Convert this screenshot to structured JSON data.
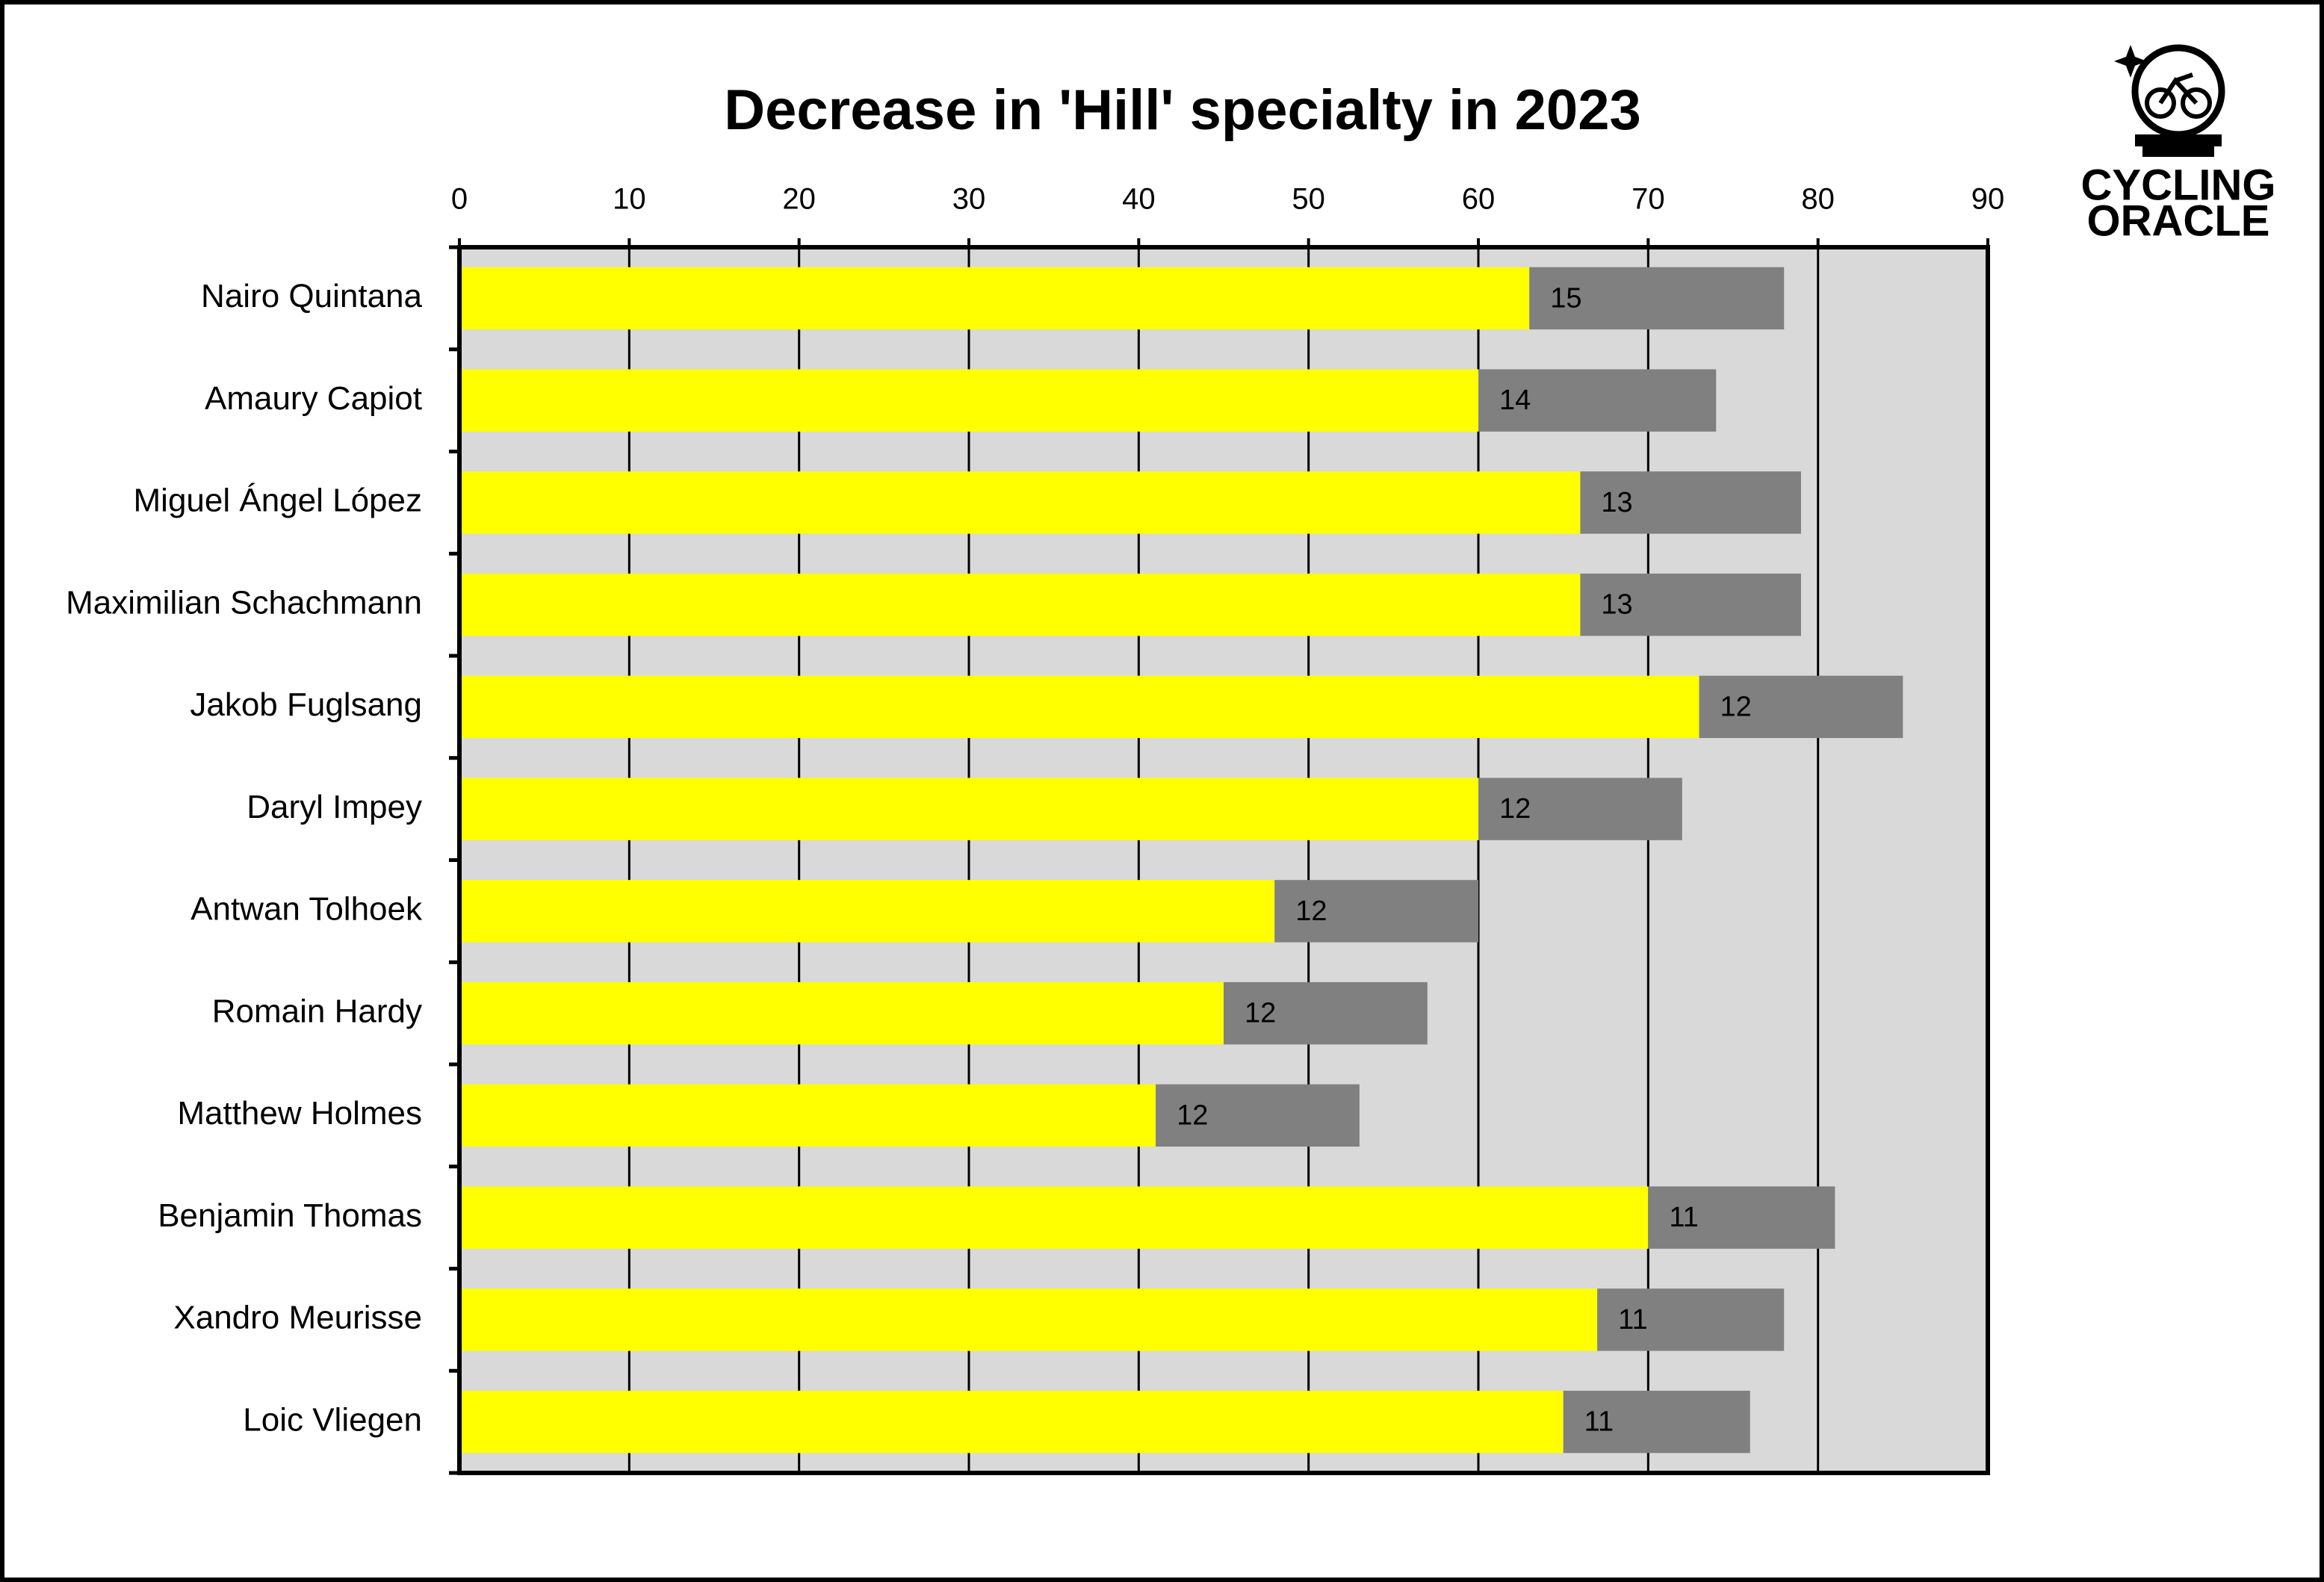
{
  "chart_data": {
    "type": "stacked_bar_horizontal",
    "title": "Decrease in 'Hill' specialty in 2023",
    "categories": [
      "Nairo Quintana",
      "Amaury Capiot",
      "Miguel Ángel López",
      "Maximilian Schachmann",
      "Jakob Fuglsang",
      "Daryl Impey",
      "Antwan Tolhoek",
      "Romain Hardy",
      "Matthew Holmes",
      "Benjamin Thomas",
      "Xandro Meurisse",
      "Loic Vliegen"
    ],
    "series": [
      {
        "color": "#ffff00",
        "values": [
          63,
          60,
          66,
          66,
          73,
          60,
          48,
          45,
          41,
          70,
          67,
          65
        ]
      },
      {
        "color": "#808080",
        "data_labels": true,
        "values": [
          15,
          14,
          13,
          13,
          12,
          12,
          12,
          12,
          12,
          11,
          11,
          11
        ]
      }
    ],
    "xlim": [
      0,
      90
    ],
    "xticks": [
      0,
      10,
      20,
      30,
      40,
      50,
      60,
      70,
      80,
      90
    ],
    "grid": true
  },
  "logo": {
    "line1": "CYCLING",
    "line2": "ORACLE"
  }
}
